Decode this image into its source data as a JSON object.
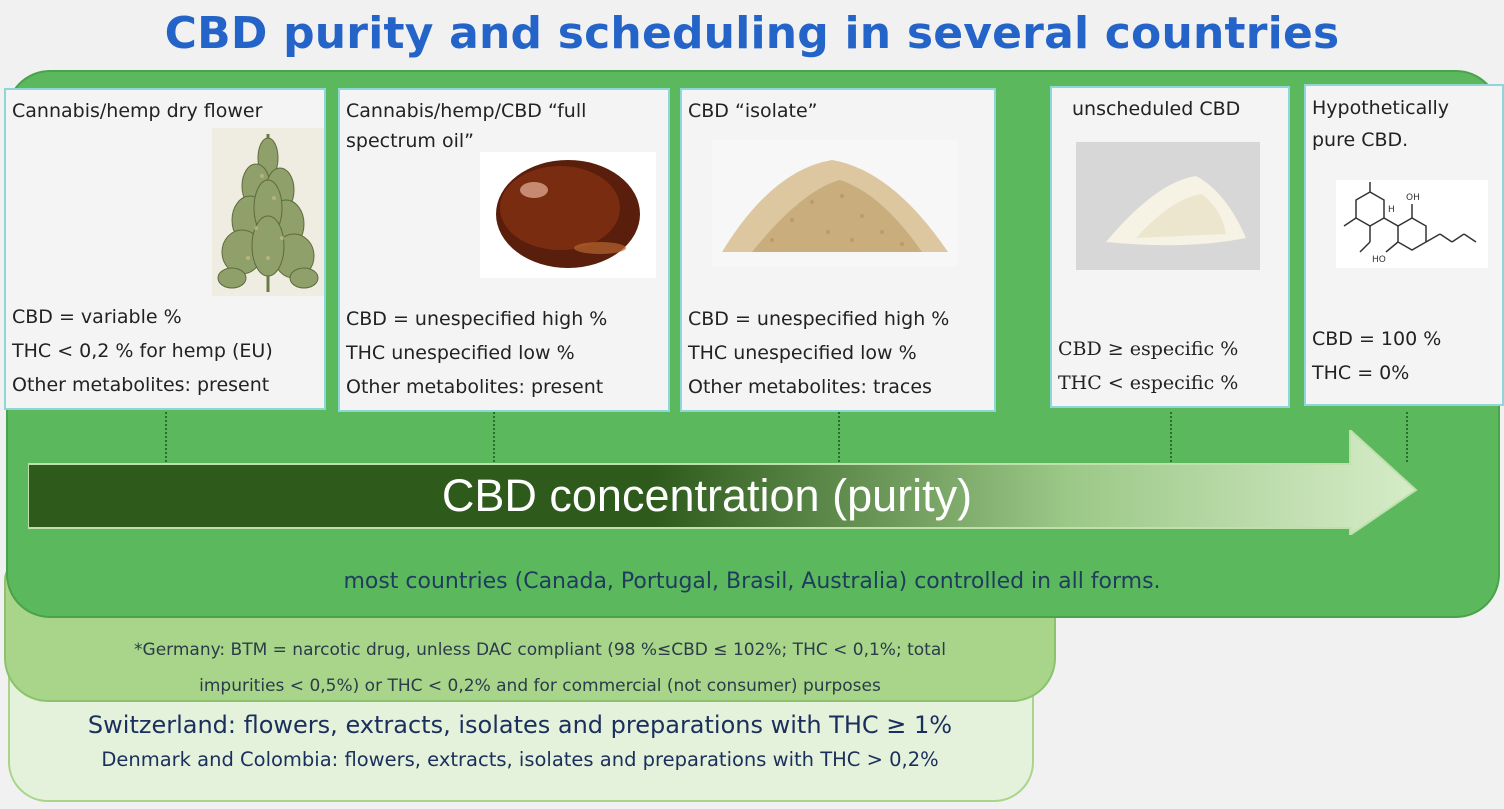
{
  "title": "CBD purity and scheduling in several countries",
  "cards": [
    {
      "header": "Cannabis/hemp dry flower",
      "image": "cannabis-flower",
      "stats": [
        "CBD = variable %",
        "THC < 0,2 % for hemp (EU)",
        "Other metabolites: present"
      ]
    },
    {
      "header": "Cannabis/hemp/CBD “full spectrum oil”",
      "image": "oil-drop",
      "stats": [
        "CBD = unespecified high %",
        "THC unespecified low %",
        "Other metabolites: present"
      ]
    },
    {
      "header": "CBD “isolate”",
      "image": "isolate-powder",
      "stats": [
        "CBD = unespecified high %",
        "THC unespecified low %",
        "Other metabolites: traces"
      ]
    },
    {
      "header": "unscheduled CBD",
      "image": "white-powder",
      "stats": [
        "CBD ≥ especific %",
        "THC < especific %"
      ]
    },
    {
      "header": "Hypothetically pure CBD.",
      "image": "cbd-molecule",
      "stats": [
        "CBD = 100 %",
        "THC = 0%"
      ]
    }
  ],
  "arrow_label": "CBD concentration (purity)",
  "band_caption": "most countries (Canada, Portugal, Brasil, Australia) controlled in all forms.",
  "germany_line1": "*Germany: BTM = narcotic drug, unless DAC compliant (98 %≤CBD ≤ 102%; THC < 0,1%; total",
  "germany_line2": "impurities  < 0,5%) or THC < 0,2% and for commercial (not consumer) purposes",
  "switzerland": "Switzerland: flowers, extracts, isolates and preparations with THC ≥ 1%",
  "denmark_colombia": "Denmark and Colombia: flowers, extracts, isolates and preparations with THC > 0,2%",
  "colors": {
    "title": "#2463c8",
    "outer_band": "#5cb85c",
    "middle_band": "#a8d58a",
    "inner_band": "#e4f1db",
    "arrow_dark": "#2e5a1c",
    "arrow_light": "#d6ecc8"
  },
  "molecule_labels": {
    "oh": "OH",
    "h": "H",
    "ho": "HO"
  }
}
